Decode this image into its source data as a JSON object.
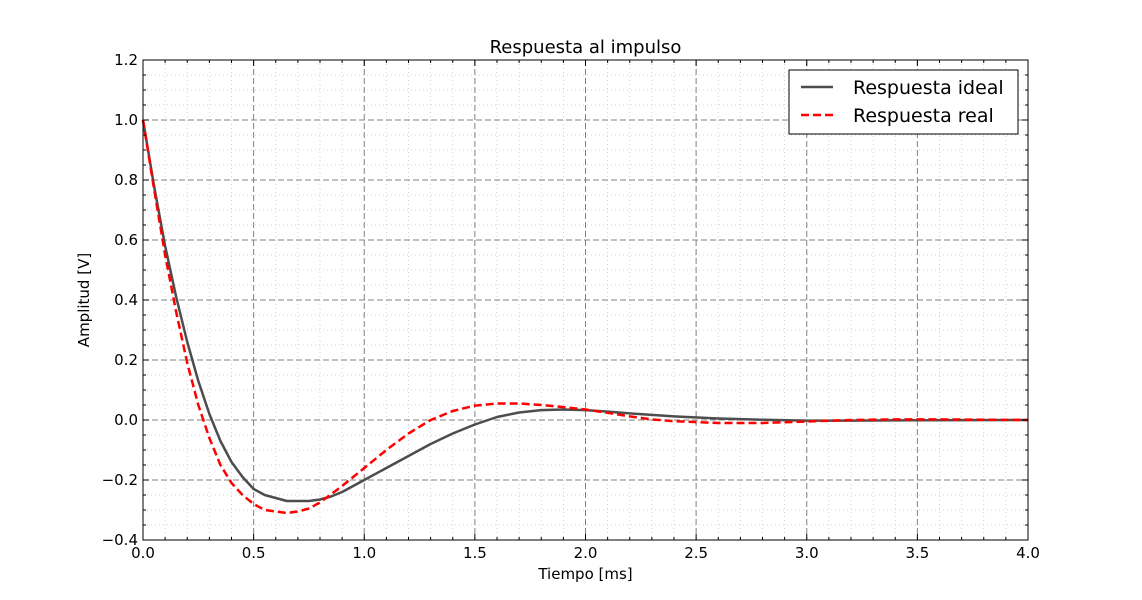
{
  "chart_data": {
    "type": "line",
    "title": "Respuesta al impulso",
    "xlabel": "Tiempo [ms]",
    "ylabel": "Amplitud [V]",
    "xlim": [
      0.0,
      4.0
    ],
    "ylim": [
      -0.4,
      1.2
    ],
    "xticks": [
      "0.0",
      "0.5",
      "1.0",
      "1.5",
      "2.0",
      "2.5",
      "3.0",
      "3.5",
      "4.0"
    ],
    "yticks": [
      "−0.4",
      "−0.2",
      "0.0",
      "0.2",
      "0.4",
      "0.6",
      "0.8",
      "1.0",
      "1.2"
    ],
    "grid": true,
    "minor_grid": true,
    "legend_position": "top-right",
    "series": [
      {
        "name": "Respuesta ideal",
        "color": "#4d4d4d",
        "style": "solid",
        "x": [
          0.0,
          0.05,
          0.1,
          0.15,
          0.2,
          0.25,
          0.3,
          0.35,
          0.4,
          0.45,
          0.5,
          0.55,
          0.6,
          0.65,
          0.7,
          0.75,
          0.8,
          0.85,
          0.9,
          1.0,
          1.1,
          1.2,
          1.3,
          1.4,
          1.5,
          1.6,
          1.7,
          1.8,
          1.9,
          2.0,
          2.1,
          2.2,
          2.4,
          2.6,
          2.8,
          3.0,
          3.2,
          3.5,
          4.0
        ],
        "y": [
          1.0,
          0.78,
          0.58,
          0.41,
          0.26,
          0.13,
          0.02,
          -0.07,
          -0.14,
          -0.19,
          -0.23,
          -0.25,
          -0.26,
          -0.27,
          -0.27,
          -0.27,
          -0.265,
          -0.255,
          -0.24,
          -0.2,
          -0.16,
          -0.12,
          -0.08,
          -0.045,
          -0.015,
          0.01,
          0.025,
          0.033,
          0.035,
          0.033,
          0.028,
          0.022,
          0.012,
          0.005,
          0.001,
          -0.002,
          -0.002,
          -0.001,
          0.0
        ]
      },
      {
        "name": "Respuesta real",
        "color": "#ff0000",
        "style": "dashed",
        "x": [
          0.0,
          0.05,
          0.1,
          0.15,
          0.2,
          0.25,
          0.3,
          0.35,
          0.4,
          0.45,
          0.5,
          0.55,
          0.6,
          0.65,
          0.7,
          0.75,
          0.8,
          0.9,
          1.0,
          1.1,
          1.2,
          1.3,
          1.4,
          1.5,
          1.6,
          1.7,
          1.8,
          1.9,
          2.0,
          2.1,
          2.2,
          2.3,
          2.4,
          2.6,
          2.8,
          3.0,
          3.2,
          3.4,
          3.6,
          3.8,
          4.0
        ],
        "y": [
          1.0,
          0.77,
          0.55,
          0.36,
          0.19,
          0.05,
          -0.06,
          -0.15,
          -0.21,
          -0.25,
          -0.28,
          -0.3,
          -0.305,
          -0.31,
          -0.305,
          -0.295,
          -0.275,
          -0.22,
          -0.16,
          -0.1,
          -0.045,
          0.0,
          0.03,
          0.048,
          0.055,
          0.055,
          0.05,
          0.043,
          0.035,
          0.024,
          0.012,
          0.002,
          -0.004,
          -0.01,
          -0.01,
          -0.005,
          0.0,
          0.002,
          0.002,
          0.001,
          0.0
        ]
      }
    ]
  }
}
